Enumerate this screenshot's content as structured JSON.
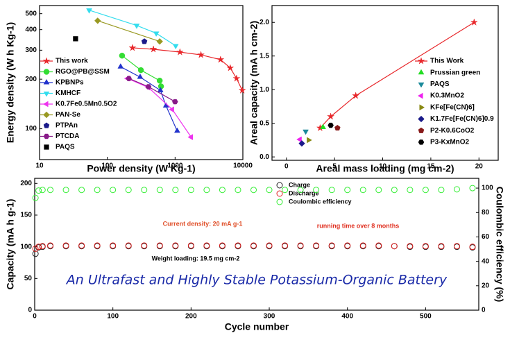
{
  "chart_data": [
    {
      "type": "scatter",
      "x_label": "Power density (W Kg-1)",
      "y_label": "Energy density (W h Kg-1)",
      "xlog": true,
      "ylog": true,
      "xlim": [
        10,
        10000
      ],
      "ylim": [
        65,
        560
      ],
      "xticks": [
        10,
        100,
        1000,
        10000
      ],
      "yticks": [
        100,
        200,
        300,
        400,
        500
      ],
      "series": [
        {
          "name": "This work",
          "color": "#e8262a",
          "marker": "star",
          "line": true,
          "x": [
            235,
            479,
            1180,
            2405,
            4680,
            6520,
            8070,
            9800
          ],
          "values": [
            310,
            304,
            292,
            281,
            263,
            234,
            202,
            171
          ]
        },
        {
          "name": "RGO@PB@SSM",
          "color": "#33dd33",
          "marker": "circle",
          "line": true,
          "x": [
            165,
            313,
            593,
            620
          ],
          "values": [
            278,
            227,
            196,
            181
          ]
        },
        {
          "name": "KPBNPs",
          "color": "#2233cc",
          "marker": "triangle-up",
          "line": true,
          "x": [
            157,
            305,
            608,
            734,
            1074
          ],
          "values": [
            238,
            206,
            171,
            138,
            97
          ]
        },
        {
          "name": "KMHCF",
          "color": "#33ddee",
          "marker": "triangle-down",
          "line": true,
          "x": [
            54,
            271,
            527,
            1020
          ],
          "values": [
            525,
            424,
            380,
            319
          ]
        },
        {
          "name": "K0.7Fe0.5Mn0.5O2",
          "color": "#ee33ee",
          "marker": "triangle-left",
          "line": true,
          "x": [
            199,
            405,
            910,
            1725
          ],
          "values": [
            202,
            178,
            131,
            89
          ]
        },
        {
          "name": "PAN-Se",
          "color": "#999922",
          "marker": "diamond",
          "line": true,
          "x": [
            72,
            593
          ],
          "values": [
            453,
            339
          ]
        },
        {
          "name": "PTPAn",
          "color": "#1a1a8a",
          "marker": "pentagon",
          "line": false,
          "x": [
            352
          ],
          "values": [
            339
          ]
        },
        {
          "name": "PTCDA",
          "color": "#881a88",
          "marker": "hexagon",
          "line": true,
          "x": [
            208,
            405,
            1000
          ],
          "values": [
            202,
            180,
            146
          ]
        },
        {
          "name": "PAQS",
          "color": "#000000",
          "marker": "square",
          "line": false,
          "x": [
            34
          ],
          "values": [
            352
          ]
        }
      ]
    },
    {
      "type": "scatter",
      "x_label": "Areal mass loading (mg cm-2)",
      "y_label": "Areal capacity (mA h cm-2)",
      "xlim": [
        -1.5,
        22
      ],
      "ylim": [
        -0.05,
        2.25
      ],
      "xticks": [
        0,
        5,
        10,
        15,
        20
      ],
      "yticks": [
        {
          "value": 0,
          "label": "0.0"
        },
        {
          "value": 0.5,
          "label": "0.5"
        },
        {
          "value": 1,
          "label": "1.0"
        },
        {
          "value": 1.5,
          "label": "1.5"
        },
        {
          "value": 2,
          "label": "2.0"
        }
      ],
      "series": [
        {
          "name": "This Work",
          "color": "#e8262a",
          "marker": "star",
          "line": true,
          "x": [
            3.5,
            4.6,
            7.2,
            19.5
          ],
          "values": [
            0.43,
            0.6,
            0.91,
            2.0
          ]
        },
        {
          "name": "Prussian green",
          "color": "#22dd22",
          "marker": "triangle-up",
          "line": false,
          "x": [
            3.8
          ],
          "values": [
            0.44
          ]
        },
        {
          "name": "PAQS",
          "color": "#1a8a9a",
          "marker": "triangle-down",
          "line": false,
          "x": [
            2.0
          ],
          "values": [
            0.38
          ]
        },
        {
          "name": "K0.3MnO2",
          "color": "#ee22ee",
          "marker": "triangle-left",
          "line": false,
          "x": [
            1.4
          ],
          "values": [
            0.26
          ]
        },
        {
          "name": "KFe[Fe(CN)6]",
          "color": "#888811",
          "marker": "triangle-right",
          "line": false,
          "x": [
            2.3
          ],
          "values": [
            0.25
          ]
        },
        {
          "name": "K1.7Fe[Fe(CN)6]0.9",
          "color": "#1a1a8a",
          "marker": "diamond",
          "line": false,
          "x": [
            1.6
          ],
          "values": [
            0.2
          ]
        },
        {
          "name": "P2-K0.6CoO2",
          "color": "#881a1a",
          "marker": "pentagon",
          "line": false,
          "x": [
            5.3
          ],
          "values": [
            0.43
          ]
        },
        {
          "name": "P3-KxMnO2",
          "color": "#000000",
          "marker": "hexagon",
          "line": false,
          "x": [
            4.6
          ],
          "values": [
            0.47
          ]
        }
      ]
    },
    {
      "type": "scatter",
      "title": "An Ultrafast and Highly Stable Potassium-Organic Battery",
      "x_label": "Cycle number",
      "y_label": "Capacity (mA h g-1)",
      "y2_label": "Coulombic efficiency (%)",
      "open_markers": true,
      "xlim": [
        0,
        568
      ],
      "ylim": [
        0,
        208
      ],
      "y2lim": [
        0,
        108
      ],
      "xticks": [
        0,
        100,
        200,
        300,
        400,
        500
      ],
      "yticks": [
        0,
        50,
        100,
        150,
        200
      ],
      "y2ticks": [
        0,
        20,
        40,
        60,
        80,
        100
      ],
      "annotations": [
        "Current density: 20 mA g-1",
        "running time over 8 months",
        "Weight loading: 19.5 mg cm-2"
      ],
      "series": [
        {
          "name": "Charge",
          "color": "#222222",
          "marker": "circle",
          "line": false,
          "x": [
            1,
            5,
            10,
            20,
            40,
            60,
            80,
            100,
            120,
            140,
            160,
            180,
            200,
            220,
            240,
            260,
            280,
            300,
            320,
            340,
            360,
            380,
            400,
            420,
            440,
            460,
            480,
            500,
            520,
            540,
            560
          ],
          "values": [
            89,
            99,
            100,
            101,
            101,
            101,
            101,
            101,
            101,
            101,
            101,
            101,
            101,
            101,
            101,
            101,
            101,
            101,
            101,
            101,
            101,
            101,
            101,
            101,
            101,
            101,
            100,
            100,
            100,
            100,
            99
          ]
        },
        {
          "name": "Discharge",
          "color": "#e02020",
          "marker": "circle",
          "line": false,
          "x": [
            1,
            5,
            10,
            20,
            40,
            60,
            80,
            100,
            120,
            140,
            160,
            180,
            200,
            220,
            240,
            260,
            280,
            300,
            320,
            340,
            360,
            380,
            400,
            420,
            440,
            460,
            480,
            500,
            520,
            540,
            560
          ],
          "values": [
            97,
            100,
            101,
            102,
            102,
            102,
            102,
            102,
            102,
            102,
            102,
            102,
            102,
            102,
            102,
            102,
            102,
            102,
            102,
            102,
            102,
            102,
            102,
            102,
            102,
            101,
            101,
            101,
            101,
            101,
            100
          ]
        },
        {
          "name": "Coulombic efficiency",
          "color": "#33ee33",
          "marker": "circle",
          "line": false,
          "axis": "y2",
          "x": [
            1,
            5,
            10,
            20,
            40,
            60,
            80,
            100,
            120,
            140,
            160,
            180,
            200,
            220,
            240,
            260,
            280,
            300,
            320,
            340,
            360,
            380,
            400,
            420,
            440,
            460,
            480,
            500,
            520,
            540,
            560
          ],
          "values": [
            92,
            98,
            98.5,
            98.5,
            98.5,
            98.5,
            98.5,
            98.5,
            98.5,
            98.5,
            98.5,
            98.5,
            98.5,
            98.5,
            98.5,
            98.5,
            98.5,
            98.5,
            98.5,
            98.5,
            98.5,
            98.5,
            98.5,
            98.5,
            98.5,
            98.5,
            98.5,
            98.5,
            98.5,
            99,
            100
          ]
        }
      ]
    }
  ]
}
